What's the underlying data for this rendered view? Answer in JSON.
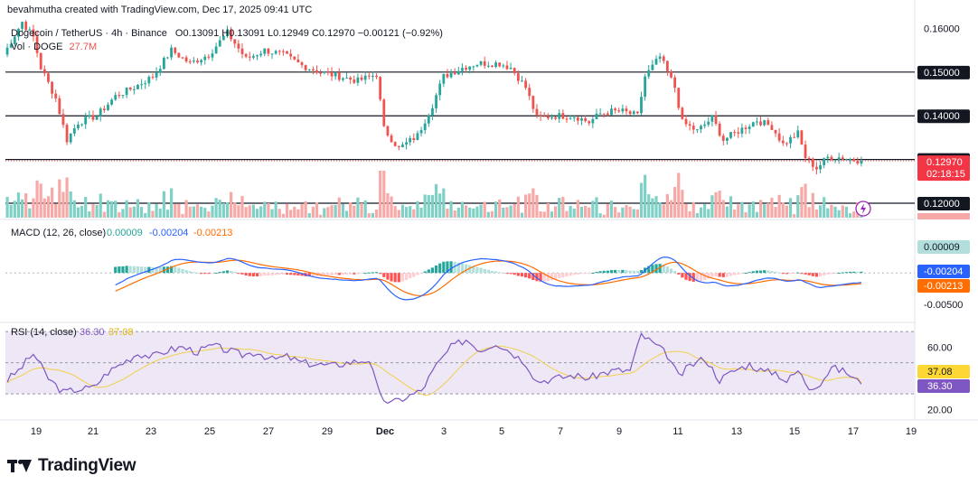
{
  "header": {
    "credit": "bevahmutha created with TradingView.com, Dec 17, 2025 09:41 UTC",
    "symbol": "Dogecoin / TetherUS · 4h · Binance",
    "ohlc": "O0.13091 H0.13091 L0.12949 C0.12970 −0.00121 (−0.92%)",
    "volume_label": "Vol · DOGE",
    "volume_value": "27.7M"
  },
  "branding": {
    "logo": "TradingView"
  },
  "colors": {
    "up": "#26a69a",
    "down": "#ef5350",
    "up_vol": "#7fd1c6",
    "down_vol": "#f7a9a7",
    "macd_line": "#2962ff",
    "signal_line": "#ff6d00",
    "rsi_line": "#7e57c2",
    "rsi_ma": "#f2d04b",
    "rsi_band": "#ede7f6"
  },
  "chart_data": [
    {
      "type": "candlestick",
      "title": "Dogecoin / TetherUS · 4h · Binance",
      "x_ticks": [
        "19",
        "21",
        "23",
        "25",
        "27",
        "29",
        "Dec",
        "3",
        "5",
        "7",
        "9",
        "11",
        "13",
        "15",
        "17",
        "19"
      ],
      "y_ticks": [
        "0.16000",
        "0.15000",
        "0.14000",
        "0.13000",
        "0.12000"
      ],
      "ylim": [
        0.1195,
        0.1616
      ],
      "horizontal_levels": [
        0.15,
        0.14,
        0.13,
        0.12
      ],
      "current_price": "0.12970",
      "countdown": "02:18:15",
      "series": [
        {
          "name": "Close",
          "anchors": [
            [
              0,
              0.154
            ],
            [
              5,
              0.1615
            ],
            [
              8,
              0.158
            ],
            [
              10,
              0.151
            ],
            [
              14,
              0.144
            ],
            [
              17,
              0.1345
            ],
            [
              20,
              0.1385
            ],
            [
              25,
              0.14
            ],
            [
              30,
              0.1445
            ],
            [
              35,
              0.1465
            ],
            [
              40,
              0.149
            ],
            [
              45,
              0.155
            ],
            [
              50,
              0.152
            ],
            [
              55,
              0.154
            ],
            [
              60,
              0.159
            ],
            [
              65,
              0.153
            ],
            [
              70,
              0.155
            ],
            [
              75,
              0.154
            ],
            [
              80,
              0.1515
            ],
            [
              85,
              0.15
            ],
            [
              90,
              0.149
            ],
            [
              95,
              0.148
            ],
            [
              100,
              0.1495
            ],
            [
              102,
              0.137
            ],
            [
              106,
              0.1325
            ],
            [
              111,
              0.1355
            ],
            [
              115,
              0.1425
            ],
            [
              118,
              0.149
            ],
            [
              123,
              0.151
            ],
            [
              127,
              0.152
            ],
            [
              133,
              0.152
            ],
            [
              136,
              0.151
            ],
            [
              140,
              0.1465
            ],
            [
              143,
              0.1395
            ],
            [
              148,
              0.14
            ],
            [
              153,
              0.14
            ],
            [
              157,
              0.1385
            ],
            [
              160,
              0.1405
            ],
            [
              163,
              0.141
            ],
            [
              166,
              0.141
            ],
            [
              170,
              0.14
            ],
            [
              172,
              0.149
            ],
            [
              176,
              0.1535
            ],
            [
              180,
              0.1465
            ],
            [
              182,
              0.1385
            ],
            [
              186,
              0.1365
            ],
            [
              190,
              0.1395
            ],
            [
              193,
              0.1345
            ],
            [
              198,
              0.137
            ],
            [
              202,
              0.139
            ],
            [
              206,
              0.1375
            ],
            [
              209,
              0.1335
            ],
            [
              213,
              0.136
            ],
            [
              215,
              0.1305
            ],
            [
              218,
              0.128
            ],
            [
              221,
              0.1305
            ],
            [
              224,
              0.1305
            ],
            [
              230,
              0.1297
            ]
          ]
        }
      ],
      "volume": {
        "label": "Vol · DOGE",
        "last": "27.7M"
      }
    },
    {
      "type": "line",
      "title": "MACD (12, 26, close)",
      "values_shown": [
        "0.00009",
        "-0.00204",
        "-0.00213"
      ],
      "y_ticks": [
        "0.00009",
        "-0.00204",
        "-0.00213",
        "-0.00500"
      ],
      "series": [
        {
          "name": "MACD",
          "last": "-0.00204"
        },
        {
          "name": "Signal",
          "last": "-0.00213"
        },
        {
          "name": "Histogram",
          "last": "0.00009"
        }
      ]
    },
    {
      "type": "line",
      "title": "RSI (14, close)",
      "values_shown": [
        "36.30",
        "37.08"
      ],
      "y_ticks": [
        "60.00",
        "37.08",
        "36.30",
        "20.00"
      ],
      "ylim": [
        15,
        73
      ],
      "bands": [
        70,
        30
      ],
      "series": [
        {
          "name": "RSI",
          "last": "36.30",
          "anchors": [
            [
              0,
              37
            ],
            [
              4,
              45
            ],
            [
              8,
              56
            ],
            [
              12,
              40
            ],
            [
              16,
              31
            ],
            [
              20,
              33
            ],
            [
              24,
              34
            ],
            [
              28,
              44
            ],
            [
              32,
              50
            ],
            [
              36,
              56
            ],
            [
              40,
              54
            ],
            [
              44,
              58
            ],
            [
              48,
              60
            ],
            [
              52,
              57
            ],
            [
              56,
              61
            ],
            [
              60,
              58
            ],
            [
              64,
              55
            ],
            [
              68,
              57
            ],
            [
              72,
              52
            ],
            [
              76,
              54
            ],
            [
              80,
              50
            ],
            [
              84,
              49
            ],
            [
              88,
              48
            ],
            [
              92,
              50
            ],
            [
              98,
              52
            ],
            [
              101,
              28
            ],
            [
              104,
              24
            ],
            [
              108,
              28
            ],
            [
              112,
              32
            ],
            [
              116,
              48
            ],
            [
              120,
              60
            ],
            [
              124,
              65
            ],
            [
              128,
              58
            ],
            [
              132,
              63
            ],
            [
              136,
              57
            ],
            [
              140,
              50
            ],
            [
              143,
              38
            ],
            [
              148,
              40
            ],
            [
              153,
              42
            ],
            [
              157,
              40
            ],
            [
              160,
              43
            ],
            [
              164,
              45
            ],
            [
              168,
              45
            ],
            [
              171,
              68
            ],
            [
              175,
              61
            ],
            [
              178,
              55
            ],
            [
              181,
              41
            ],
            [
              184,
              48
            ],
            [
              188,
              53
            ],
            [
              192,
              39
            ],
            [
              196,
              45
            ],
            [
              200,
              49
            ],
            [
              204,
              44
            ],
            [
              207,
              44
            ],
            [
              210,
              38
            ],
            [
              213,
              45
            ],
            [
              216,
              34
            ],
            [
              219,
              37
            ],
            [
              222,
              47
            ],
            [
              226,
              44
            ],
            [
              230,
              36
            ]
          ]
        },
        {
          "name": "RSI-based MA",
          "last": "37.08"
        }
      ]
    }
  ]
}
